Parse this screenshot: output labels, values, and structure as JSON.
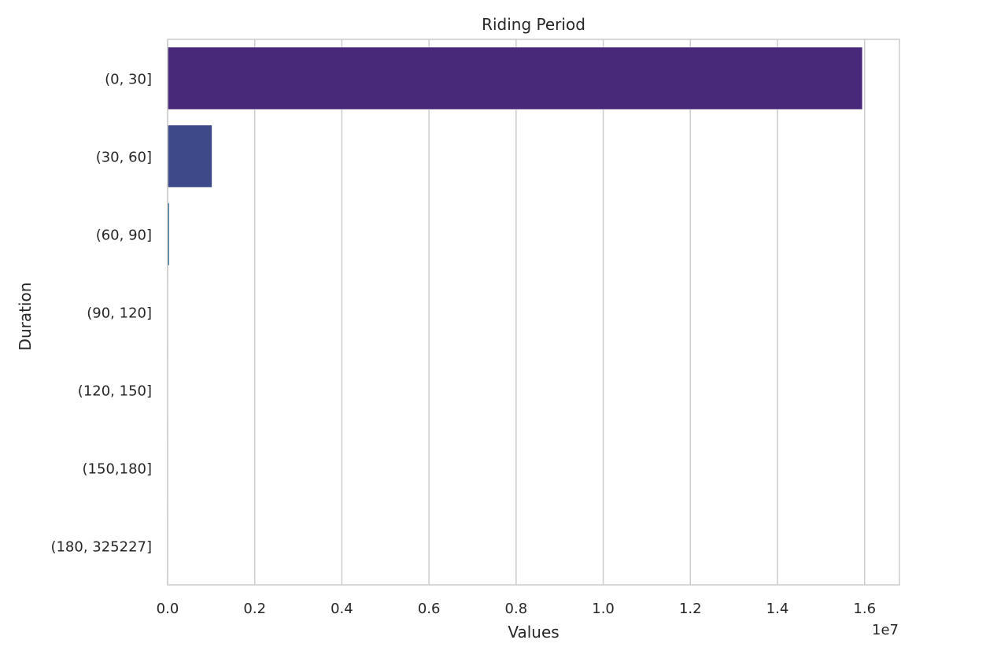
{
  "chart_data": {
    "type": "bar",
    "orientation": "horizontal",
    "title": "Riding Period",
    "xlabel": "Values",
    "ylabel": "Duration",
    "x_scale_label": "1e7",
    "categories": [
      "(0, 30]",
      "(30, 60]",
      "(60, 90]",
      "(90, 120]",
      "(120, 150]",
      "(150,180]",
      "(180, 325227]"
    ],
    "values": [
      15950000,
      1020000,
      40000,
      8000,
      4000,
      2000,
      3000
    ],
    "xlim": [
      0,
      16800000
    ],
    "xticks": [
      0,
      2000000,
      4000000,
      6000000,
      8000000,
      10000000,
      12000000,
      14000000,
      16000000
    ],
    "xtick_labels": [
      "0.0",
      "0.2",
      "0.4",
      "0.6",
      "0.8",
      "1.0",
      "1.2",
      "1.4",
      "1.6"
    ],
    "grid": true,
    "legend": "none",
    "colors": [
      "#482878",
      "#3e4989",
      "#31688e",
      "#26828e",
      "#1f9e89",
      "#35b779",
      "#6ece58"
    ]
  }
}
